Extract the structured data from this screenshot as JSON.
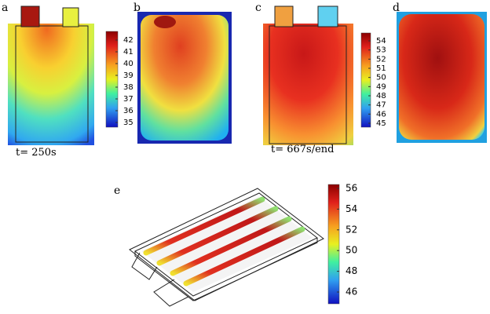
{
  "panels": [
    {
      "label": "a",
      "caption": "t= 250s"
    },
    {
      "label": "b"
    },
    {
      "label": "c",
      "caption": "t= 667s/end"
    },
    {
      "label": "d"
    },
    {
      "label": "e"
    }
  ],
  "colorbars": [
    {
      "ticks": [
        42,
        41,
        40,
        39,
        38,
        37,
        36,
        35
      ]
    },
    {
      "ticks": [
        54,
        53,
        52,
        51,
        50,
        49,
        48,
        47,
        46,
        45
      ]
    },
    {
      "ticks": [
        56,
        54,
        52,
        50,
        48,
        46
      ]
    }
  ]
}
